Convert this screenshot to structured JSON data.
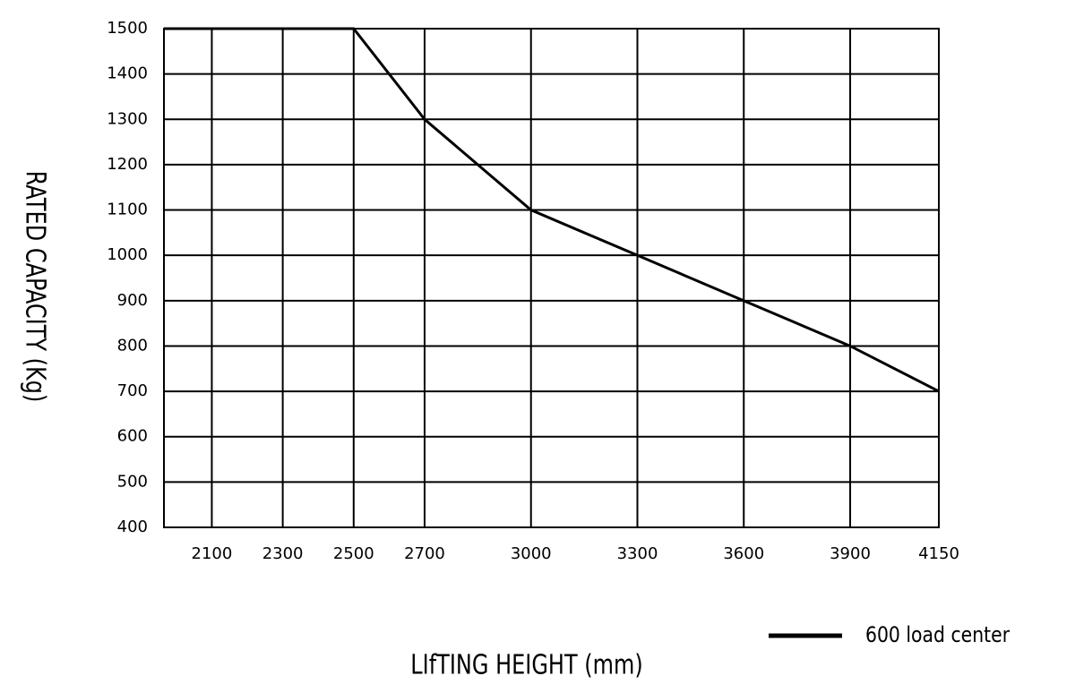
{
  "chart_data": {
    "type": "line",
    "x_label": "LIfTING HEIGHT (mm)",
    "y_label": "RATED CAPACITY (Kg)",
    "x": [
      1965,
      2500,
      2700,
      3000,
      3300,
      3600,
      3900,
      4150
    ],
    "series": [
      {
        "name": "600 load center",
        "color": "#000000",
        "values": [
          1500,
          1500,
          1300,
          1100,
          1000,
          900,
          800,
          700
        ]
      }
    ],
    "xlim": [
      1965,
      4150
    ],
    "xticks": [
      2100,
      2300,
      2500,
      2700,
      3000,
      3300,
      3600,
      3900,
      4150
    ],
    "ylim": [
      400,
      1500
    ],
    "yticks": [
      400,
      500,
      600,
      700,
      800,
      900,
      1000,
      1100,
      1200,
      1300,
      1400,
      1500
    ],
    "grid": true,
    "legend": "lower right"
  }
}
